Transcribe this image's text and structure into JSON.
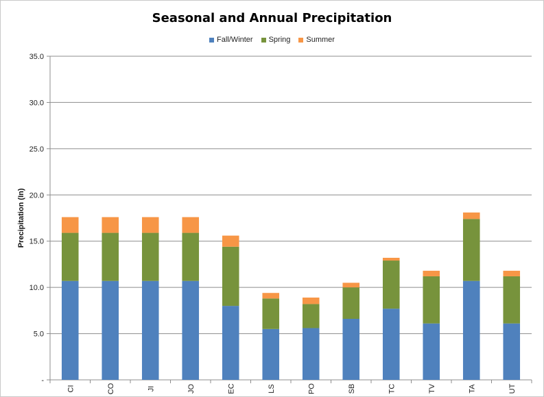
{
  "chart_data": {
    "type": "bar",
    "stacked": true,
    "title": "Seasonal and Annual Precipitation",
    "ylabel": "Precipitation (In)",
    "xlabel": "",
    "ylim": [
      0,
      35
    ],
    "yticks": [
      0,
      5,
      10,
      15,
      20,
      25,
      30,
      35
    ],
    "ytick_labels": [
      "-",
      "5.0",
      "10.0",
      "15.0",
      "20.0",
      "25.0",
      "30.0",
      "35.0"
    ],
    "grid": true,
    "legend_position": "top",
    "categories": [
      "CI",
      "CO",
      "JI",
      "JO",
      "EC",
      "LS",
      "PO",
      "SB",
      "TC",
      "TV",
      "TA",
      "UT"
    ],
    "series": [
      {
        "name": "Fall/Winter",
        "color": "#4f81bd",
        "values": [
          10.7,
          10.7,
          10.7,
          10.7,
          8.0,
          5.5,
          5.6,
          6.6,
          7.7,
          6.1,
          10.7,
          6.1
        ]
      },
      {
        "name": "Spring",
        "color": "#77933c",
        "values": [
          5.2,
          5.2,
          5.2,
          5.2,
          6.4,
          3.3,
          2.6,
          3.4,
          5.2,
          5.1,
          6.7,
          5.1
        ]
      },
      {
        "name": "Summer",
        "color": "#f79646",
        "values": [
          1.7,
          1.7,
          1.7,
          1.7,
          1.2,
          0.6,
          0.7,
          0.5,
          0.3,
          0.6,
          0.7,
          0.6
        ]
      }
    ]
  }
}
